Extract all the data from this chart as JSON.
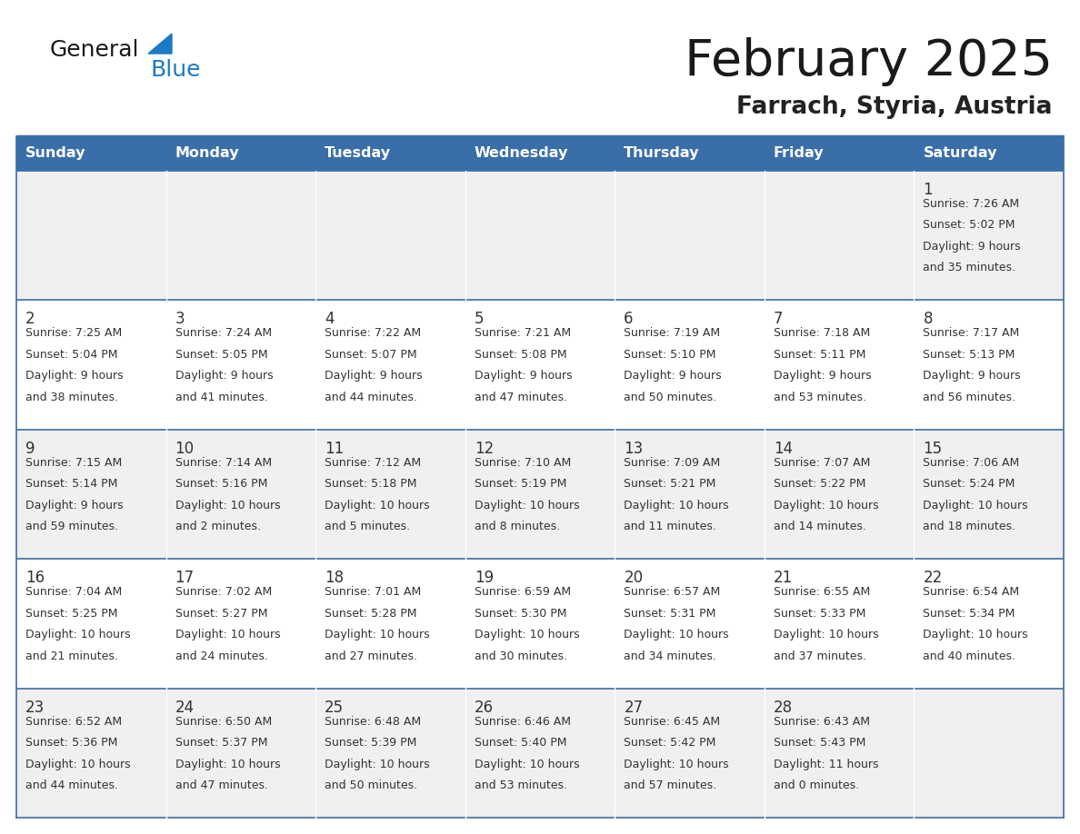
{
  "title": "February 2025",
  "subtitle": "Farrach, Styria, Austria",
  "header_bg": "#3a6ea8",
  "header_text_color": "#ffffff",
  "cell_bg_odd": "#f0f0f0",
  "cell_bg_even": "#ffffff",
  "day_headers": [
    "Sunday",
    "Monday",
    "Tuesday",
    "Wednesday",
    "Thursday",
    "Friday",
    "Saturday"
  ],
  "title_color": "#1a1a1a",
  "subtitle_color": "#222222",
  "day_num_color": "#333333",
  "info_color": "#333333",
  "border_color": "#3a6ea8",
  "logo_text_color": "#1a1a1a",
  "logo_blue_color": "#1a7bc4",
  "calendar_data": [
    [
      null,
      null,
      null,
      null,
      null,
      null,
      {
        "day": 1,
        "sunrise": "7:26 AM",
        "sunset": "5:02 PM",
        "daylight": "9 hours and 35 minutes."
      }
    ],
    [
      {
        "day": 2,
        "sunrise": "7:25 AM",
        "sunset": "5:04 PM",
        "daylight": "9 hours and 38 minutes."
      },
      {
        "day": 3,
        "sunrise": "7:24 AM",
        "sunset": "5:05 PM",
        "daylight": "9 hours and 41 minutes."
      },
      {
        "day": 4,
        "sunrise": "7:22 AM",
        "sunset": "5:07 PM",
        "daylight": "9 hours and 44 minutes."
      },
      {
        "day": 5,
        "sunrise": "7:21 AM",
        "sunset": "5:08 PM",
        "daylight": "9 hours and 47 minutes."
      },
      {
        "day": 6,
        "sunrise": "7:19 AM",
        "sunset": "5:10 PM",
        "daylight": "9 hours and 50 minutes."
      },
      {
        "day": 7,
        "sunrise": "7:18 AM",
        "sunset": "5:11 PM",
        "daylight": "9 hours and 53 minutes."
      },
      {
        "day": 8,
        "sunrise": "7:17 AM",
        "sunset": "5:13 PM",
        "daylight": "9 hours and 56 minutes."
      }
    ],
    [
      {
        "day": 9,
        "sunrise": "7:15 AM",
        "sunset": "5:14 PM",
        "daylight": "9 hours and 59 minutes."
      },
      {
        "day": 10,
        "sunrise": "7:14 AM",
        "sunset": "5:16 PM",
        "daylight": "10 hours and 2 minutes."
      },
      {
        "day": 11,
        "sunrise": "7:12 AM",
        "sunset": "5:18 PM",
        "daylight": "10 hours and 5 minutes."
      },
      {
        "day": 12,
        "sunrise": "7:10 AM",
        "sunset": "5:19 PM",
        "daylight": "10 hours and 8 minutes."
      },
      {
        "day": 13,
        "sunrise": "7:09 AM",
        "sunset": "5:21 PM",
        "daylight": "10 hours and 11 minutes."
      },
      {
        "day": 14,
        "sunrise": "7:07 AM",
        "sunset": "5:22 PM",
        "daylight": "10 hours and 14 minutes."
      },
      {
        "day": 15,
        "sunrise": "7:06 AM",
        "sunset": "5:24 PM",
        "daylight": "10 hours and 18 minutes."
      }
    ],
    [
      {
        "day": 16,
        "sunrise": "7:04 AM",
        "sunset": "5:25 PM",
        "daylight": "10 hours and 21 minutes."
      },
      {
        "day": 17,
        "sunrise": "7:02 AM",
        "sunset": "5:27 PM",
        "daylight": "10 hours and 24 minutes."
      },
      {
        "day": 18,
        "sunrise": "7:01 AM",
        "sunset": "5:28 PM",
        "daylight": "10 hours and 27 minutes."
      },
      {
        "day": 19,
        "sunrise": "6:59 AM",
        "sunset": "5:30 PM",
        "daylight": "10 hours and 30 minutes."
      },
      {
        "day": 20,
        "sunrise": "6:57 AM",
        "sunset": "5:31 PM",
        "daylight": "10 hours and 34 minutes."
      },
      {
        "day": 21,
        "sunrise": "6:55 AM",
        "sunset": "5:33 PM",
        "daylight": "10 hours and 37 minutes."
      },
      {
        "day": 22,
        "sunrise": "6:54 AM",
        "sunset": "5:34 PM",
        "daylight": "10 hours and 40 minutes."
      }
    ],
    [
      {
        "day": 23,
        "sunrise": "6:52 AM",
        "sunset": "5:36 PM",
        "daylight": "10 hours and 44 minutes."
      },
      {
        "day": 24,
        "sunrise": "6:50 AM",
        "sunset": "5:37 PM",
        "daylight": "10 hours and 47 minutes."
      },
      {
        "day": 25,
        "sunrise": "6:48 AM",
        "sunset": "5:39 PM",
        "daylight": "10 hours and 50 minutes."
      },
      {
        "day": 26,
        "sunrise": "6:46 AM",
        "sunset": "5:40 PM",
        "daylight": "10 hours and 53 minutes."
      },
      {
        "day": 27,
        "sunrise": "6:45 AM",
        "sunset": "5:42 PM",
        "daylight": "10 hours and 57 minutes."
      },
      {
        "day": 28,
        "sunrise": "6:43 AM",
        "sunset": "5:43 PM",
        "daylight": "11 hours and 0 minutes."
      },
      null
    ]
  ]
}
